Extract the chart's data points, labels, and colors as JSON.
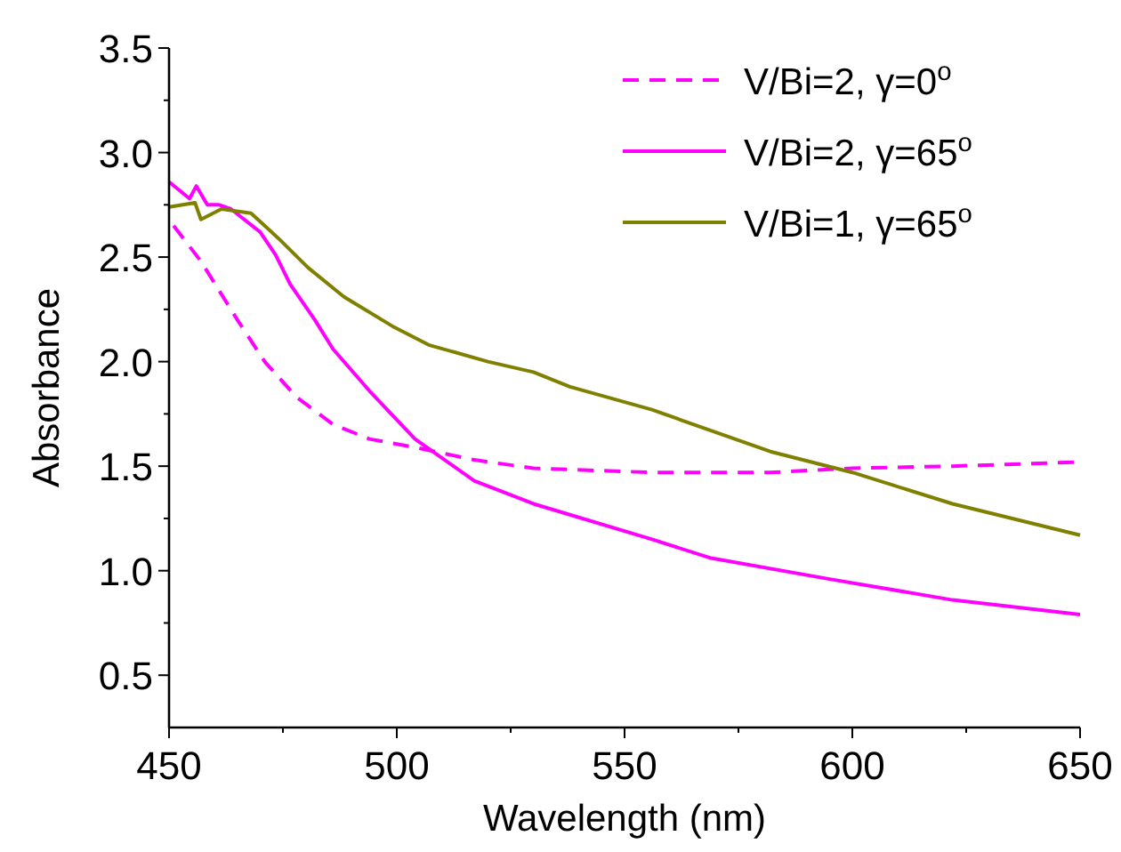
{
  "chart_data": {
    "type": "line",
    "xlabel": "Wavelength (nm)",
    "ylabel": "Absorbance",
    "xlim": [
      450,
      650
    ],
    "xticks": [
      450,
      {
        "value": 475,
        "label": null
      },
      500,
      {
        "value": 525,
        "label": null
      },
      550,
      {
        "value": 575,
        "label": null
      },
      600,
      {
        "value": 625,
        "label": null
      },
      650
    ],
    "ylim": [
      0.25,
      3.5
    ],
    "yticks": [
      0.5,
      {
        "value": 0.75,
        "label": null
      },
      {
        "value": 1,
        "label": "1.0"
      },
      {
        "value": 1.25,
        "label": null
      },
      1.5,
      {
        "value": 1.75,
        "label": null
      },
      {
        "value": 2,
        "label": "2.0"
      },
      {
        "value": 2.25,
        "label": null
      },
      2.5,
      {
        "value": 2.75,
        "label": null
      },
      {
        "value": 3,
        "label": "3.0"
      },
      {
        "value": 3.25,
        "label": null
      },
      3.5
    ],
    "legend": "top right",
    "grid": false,
    "series": [
      {
        "name": "V/Bi=2, γ=0$^{o}$",
        "color": "#ff00ff",
        "line_style": "dashed",
        "x": [
          451,
          457,
          461,
          465,
          471,
          478,
          486,
          494,
          504,
          517,
          530,
          556,
          582,
          600,
          622,
          650
        ],
        "values": [
          2.65,
          2.48,
          2.34,
          2.2,
          2.0,
          1.83,
          1.7,
          1.63,
          1.59,
          1.53,
          1.49,
          1.47,
          1.47,
          1.49,
          1.5,
          1.52
        ]
      },
      {
        "name": "V/Bi=2, γ=65$^{o}$",
        "color": "#ff00ff",
        "line_style": "solid",
        "x": [
          450,
          454.5,
          456,
          458.4,
          461,
          463.6,
          470,
          473.4,
          476.6,
          482,
          486,
          494,
          504,
          517,
          530,
          556,
          569,
          595,
          622,
          650
        ],
        "values": [
          2.86,
          2.78,
          2.84,
          2.75,
          2.75,
          2.73,
          2.62,
          2.51,
          2.37,
          2.2,
          2.06,
          1.86,
          1.63,
          1.43,
          1.32,
          1.15,
          1.06,
          0.96,
          0.86,
          0.79
        ]
      },
      {
        "name": "V/Bi=1, γ=65$^{o}$",
        "color": "#808000",
        "line_style": "solid",
        "x": [
          450,
          455.7,
          457,
          461.5,
          468,
          474,
          480.5,
          488.4,
          499,
          507,
          520,
          530,
          538,
          556,
          582,
          600,
          622,
          650
        ],
        "values": [
          2.74,
          2.76,
          2.68,
          2.73,
          2.71,
          2.59,
          2.45,
          2.31,
          2.17,
          2.08,
          2.0,
          1.95,
          1.88,
          1.77,
          1.57,
          1.47,
          1.32,
          1.17
        ]
      }
    ]
  }
}
